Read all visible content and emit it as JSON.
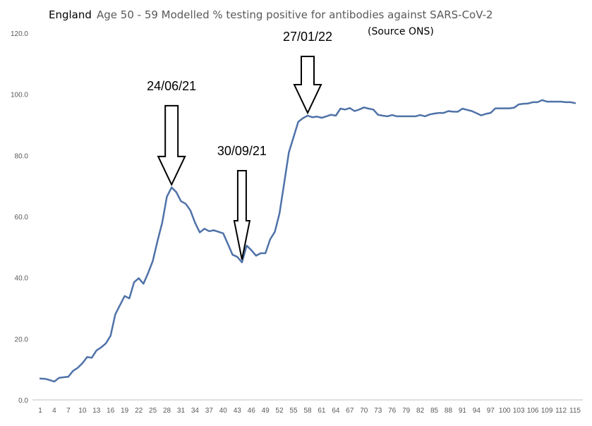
{
  "header": {
    "region": "England",
    "title": "Age 50 - 59 Modelled % testing positive for antibodies against SARS-CoV-2",
    "source": "(Source ONS)"
  },
  "colors": {
    "line": "#4f72a8",
    "grid": "#d9d9d9",
    "axis": "#bfbfbf"
  },
  "chart_data": {
    "type": "line",
    "title": "Age 50 - 59 Modelled % testing positive for antibodies against SARS-CoV-2",
    "xlabel": "",
    "ylabel": "",
    "ylim": [
      0,
      120
    ],
    "yticks": [
      "0.0",
      "20.0",
      "40.0",
      "60.0",
      "80.0",
      "100.0",
      "120.0"
    ],
    "grid": false,
    "x": [
      1,
      2,
      3,
      4,
      5,
      6,
      7,
      8,
      9,
      10,
      11,
      12,
      13,
      14,
      15,
      16,
      17,
      18,
      19,
      20,
      21,
      22,
      23,
      24,
      25,
      26,
      27,
      28,
      29,
      30,
      31,
      32,
      33,
      34,
      35,
      36,
      37,
      38,
      39,
      40,
      41,
      42,
      43,
      44,
      45,
      46,
      47,
      48,
      49,
      50,
      51,
      52,
      53,
      54,
      55,
      56,
      57,
      58,
      59,
      60,
      61,
      62,
      63,
      64,
      65,
      66,
      67,
      68,
      69,
      70,
      71,
      72,
      73,
      74,
      75,
      76,
      77,
      78,
      79,
      80,
      81,
      82,
      83,
      84,
      85,
      86,
      87,
      88,
      89,
      90,
      91,
      92,
      93,
      94,
      95,
      96,
      97,
      98,
      99,
      100,
      101,
      102,
      103,
      104,
      105,
      106,
      107,
      108,
      109,
      110,
      111,
      112,
      113,
      114,
      115
    ],
    "xticks": [
      "1",
      "4",
      "7",
      "10",
      "13",
      "16",
      "19",
      "22",
      "25",
      "28",
      "31",
      "34",
      "37",
      "40",
      "43",
      "46",
      "49",
      "52",
      "55",
      "58",
      "61",
      "64",
      "67",
      "70",
      "73",
      "76",
      "79",
      "82",
      "85",
      "88",
      "91",
      "94",
      "97",
      "100",
      "103",
      "106",
      "109",
      "112",
      "115"
    ],
    "series": [
      {
        "values": [
          7.0,
          6.9,
          6.5,
          6.0,
          7.2,
          7.4,
          7.6,
          9.5,
          10.5,
          12.0,
          14.0,
          13.8,
          16.2,
          17.2,
          18.5,
          21.0,
          28.0,
          31.0,
          34.0,
          33.2,
          38.5,
          39.8,
          38.0,
          41.5,
          45.5,
          52.0,
          58.0,
          66.5,
          69.5,
          68.0,
          65.0,
          64.2,
          62.0,
          58.0,
          54.8,
          56.0,
          55.2,
          55.5,
          55.0,
          54.5,
          51.0,
          47.5,
          46.8,
          45.0,
          50.5,
          49.0,
          47.2,
          48.0,
          48.0,
          52.5,
          55.0,
          61.0,
          71.0,
          81.0,
          86.0,
          91.0,
          92.2,
          93.0,
          92.5,
          92.7,
          92.3,
          92.8,
          93.3,
          93.0,
          95.3,
          95.0,
          95.5,
          94.5,
          95.0,
          95.7,
          95.3,
          95.0,
          93.3,
          93.0,
          92.8,
          93.2,
          92.8,
          92.8,
          92.8,
          92.8,
          92.8,
          93.2,
          92.8,
          93.4,
          93.7,
          93.9,
          93.9,
          94.5,
          94.3,
          94.3,
          95.3,
          94.9,
          94.5,
          93.8,
          93.1,
          93.6,
          93.9,
          95.4,
          95.4,
          95.4,
          95.4,
          95.6,
          96.7,
          96.9,
          97.0,
          97.4,
          97.4,
          98.1,
          97.6,
          97.6,
          97.6,
          97.6,
          97.4,
          97.4,
          97.1
        ]
      }
    ],
    "annotations": [
      {
        "label": "24/06/21",
        "x": 29,
        "y": 69.5
      },
      {
        "label": "30/09/21",
        "x": 44,
        "y": 45.0
      },
      {
        "label": "27/01/22",
        "x": 58,
        "y": 93.0
      }
    ]
  }
}
